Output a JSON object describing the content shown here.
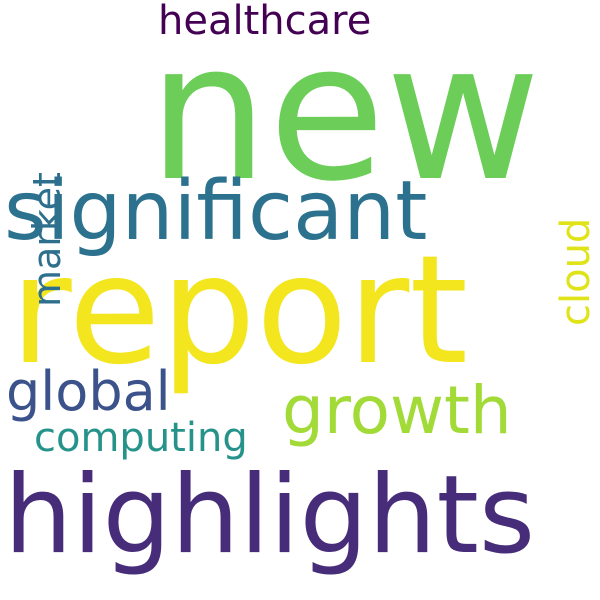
{
  "words": [
    {
      "id": "new",
      "text": "new",
      "color": "#6cce59",
      "orientation": "horizontal"
    },
    {
      "id": "report",
      "text": "report",
      "color": "#f3e51e",
      "orientation": "horizontal"
    },
    {
      "id": "highlights",
      "text": "highlights",
      "color": "#472c7a",
      "orientation": "horizontal"
    },
    {
      "id": "significant",
      "text": "significant",
      "color": "#2c728e",
      "orientation": "horizontal"
    },
    {
      "id": "growth",
      "text": "growth",
      "color": "#a2da37",
      "orientation": "horizontal"
    },
    {
      "id": "global",
      "text": "global",
      "color": "#3b528b",
      "orientation": "horizontal"
    },
    {
      "id": "computing",
      "text": "computing",
      "color": "#26938b",
      "orientation": "horizontal"
    },
    {
      "id": "healthcare",
      "text": "healthcare",
      "color": "#440154",
      "orientation": "horizontal"
    },
    {
      "id": "market",
      "text": "market",
      "color": "#2e6f8e",
      "orientation": "vertical"
    },
    {
      "id": "cloud",
      "text": "cloud",
      "color": "#dfe318",
      "orientation": "vertical"
    }
  ]
}
